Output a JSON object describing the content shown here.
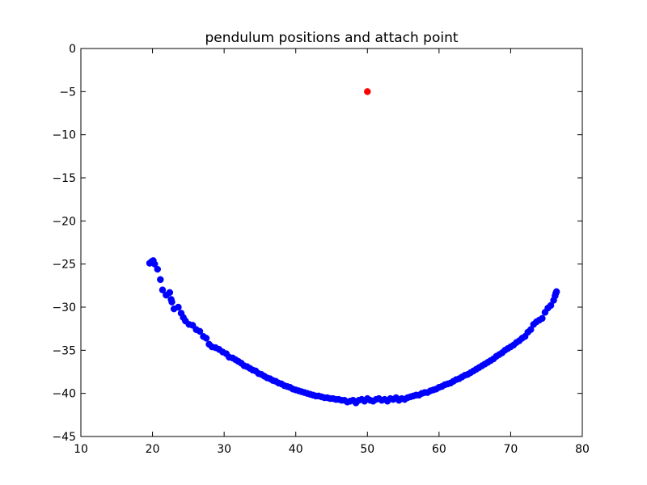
{
  "chart_data": {
    "type": "scatter",
    "title": "pendulum positions and attach point",
    "xlabel": "",
    "ylabel": "",
    "xlim": [
      10,
      80
    ],
    "ylim": [
      -45,
      0
    ],
    "xticks": [
      10,
      20,
      30,
      40,
      50,
      60,
      70,
      80
    ],
    "yticks": [
      0,
      -5,
      -10,
      -15,
      -20,
      -25,
      -30,
      -35,
      -40,
      -45
    ],
    "xtick_labels": [
      "10",
      "20",
      "30",
      "40",
      "50",
      "60",
      "70",
      "80"
    ],
    "ytick_labels": [
      "0",
      "−5",
      "−10",
      "−15",
      "−20",
      "−25",
      "−30",
      "−35",
      "−40",
      "−45"
    ],
    "grid": false,
    "series": [
      {
        "color": "#0000ff",
        "points": [
          [
            19.6,
            -24.9
          ],
          [
            19.9,
            -24.7
          ],
          [
            20.1,
            -24.6
          ],
          [
            20.3,
            -25.0
          ],
          [
            20.7,
            -25.6
          ],
          [
            21.1,
            -26.8
          ],
          [
            21.4,
            -28.0
          ],
          [
            21.9,
            -28.6
          ],
          [
            22.4,
            -28.3
          ],
          [
            22.6,
            -29.1
          ],
          [
            22.7,
            -29.4
          ],
          [
            23.0,
            -30.2
          ],
          [
            23.6,
            -30.0
          ],
          [
            24.0,
            -30.7
          ],
          [
            24.3,
            -31.2
          ],
          [
            24.6,
            -31.6
          ],
          [
            25.1,
            -32.0
          ],
          [
            25.6,
            -32.1
          ],
          [
            26.1,
            -32.6
          ],
          [
            26.6,
            -32.8
          ],
          [
            27.1,
            -33.4
          ],
          [
            27.5,
            -33.6
          ],
          [
            27.9,
            -34.3
          ],
          [
            28.3,
            -34.6
          ],
          [
            28.8,
            -34.7
          ],
          [
            29.3,
            -34.9
          ],
          [
            29.8,
            -35.2
          ],
          [
            30.3,
            -35.4
          ],
          [
            30.7,
            -35.8
          ],
          [
            31.2,
            -35.9
          ],
          [
            31.6,
            -36.1
          ],
          [
            32.0,
            -36.3
          ],
          [
            32.4,
            -36.5
          ],
          [
            32.8,
            -36.8
          ],
          [
            33.2,
            -36.9
          ],
          [
            33.6,
            -37.1
          ],
          [
            34.0,
            -37.3
          ],
          [
            34.4,
            -37.4
          ],
          [
            34.8,
            -37.7
          ],
          [
            35.2,
            -37.8
          ],
          [
            35.6,
            -38.0
          ],
          [
            36.0,
            -38.2
          ],
          [
            36.4,
            -38.3
          ],
          [
            36.8,
            -38.5
          ],
          [
            37.2,
            -38.6
          ],
          [
            37.6,
            -38.8
          ],
          [
            38.0,
            -38.9
          ],
          [
            38.4,
            -39.1
          ],
          [
            38.8,
            -39.2
          ],
          [
            39.2,
            -39.3
          ],
          [
            39.6,
            -39.5
          ],
          [
            40.0,
            -39.6
          ],
          [
            40.4,
            -39.7
          ],
          [
            40.8,
            -39.8
          ],
          [
            41.2,
            -39.9
          ],
          [
            41.6,
            -40.0
          ],
          [
            42.0,
            -40.1
          ],
          [
            42.4,
            -40.2
          ],
          [
            42.8,
            -40.3
          ],
          [
            43.2,
            -40.3
          ],
          [
            43.6,
            -40.4
          ],
          [
            44.0,
            -40.5
          ],
          [
            44.4,
            -40.5
          ],
          [
            44.8,
            -40.6
          ],
          [
            45.2,
            -40.6
          ],
          [
            45.6,
            -40.7
          ],
          [
            46.0,
            -40.7
          ],
          [
            46.4,
            -40.8
          ],
          [
            46.8,
            -40.8
          ],
          [
            47.2,
            -41.0
          ],
          [
            47.6,
            -40.9
          ],
          [
            48.0,
            -40.8
          ],
          [
            48.4,
            -41.1
          ],
          [
            48.8,
            -40.8
          ],
          [
            49.2,
            -40.7
          ],
          [
            49.6,
            -40.9
          ],
          [
            50.0,
            -40.6
          ],
          [
            50.4,
            -40.8
          ],
          [
            50.8,
            -40.9
          ],
          [
            51.2,
            -40.7
          ],
          [
            51.6,
            -40.6
          ],
          [
            52.0,
            -40.8
          ],
          [
            52.4,
            -40.7
          ],
          [
            52.8,
            -40.9
          ],
          [
            53.2,
            -40.6
          ],
          [
            53.6,
            -40.7
          ],
          [
            54.0,
            -40.5
          ],
          [
            54.4,
            -40.8
          ],
          [
            54.8,
            -40.6
          ],
          [
            55.2,
            -40.7
          ],
          [
            55.6,
            -40.5
          ],
          [
            56.0,
            -40.4
          ],
          [
            56.4,
            -40.3
          ],
          [
            56.8,
            -40.2
          ],
          [
            57.2,
            -40.2
          ],
          [
            57.6,
            -40.0
          ],
          [
            58.0,
            -39.9
          ],
          [
            58.4,
            -39.9
          ],
          [
            58.8,
            -39.7
          ],
          [
            59.2,
            -39.6
          ],
          [
            59.6,
            -39.5
          ],
          [
            60.0,
            -39.3
          ],
          [
            60.4,
            -39.2
          ],
          [
            60.8,
            -39.0
          ],
          [
            61.2,
            -38.9
          ],
          [
            61.6,
            -38.8
          ],
          [
            62.0,
            -38.6
          ],
          [
            62.4,
            -38.4
          ],
          [
            62.8,
            -38.3
          ],
          [
            63.2,
            -38.1
          ],
          [
            63.6,
            -37.9
          ],
          [
            64.0,
            -37.8
          ],
          [
            64.4,
            -37.6
          ],
          [
            64.8,
            -37.4
          ],
          [
            65.2,
            -37.2
          ],
          [
            65.6,
            -37.0
          ],
          [
            66.0,
            -36.8
          ],
          [
            66.4,
            -36.6
          ],
          [
            66.8,
            -36.4
          ],
          [
            67.2,
            -36.2
          ],
          [
            67.6,
            -36.0
          ],
          [
            68.0,
            -35.7
          ],
          [
            68.4,
            -35.5
          ],
          [
            68.8,
            -35.3
          ],
          [
            69.2,
            -35.0
          ],
          [
            69.6,
            -34.8
          ],
          [
            70.0,
            -34.6
          ],
          [
            70.4,
            -34.4
          ],
          [
            70.8,
            -34.1
          ],
          [
            71.2,
            -33.9
          ],
          [
            71.6,
            -33.6
          ],
          [
            72.0,
            -33.4
          ],
          [
            72.4,
            -32.9
          ],
          [
            72.8,
            -32.6
          ],
          [
            73.2,
            -32.0
          ],
          [
            73.6,
            -31.7
          ],
          [
            74.0,
            -31.5
          ],
          [
            74.4,
            -31.3
          ],
          [
            74.8,
            -30.6
          ],
          [
            75.2,
            -30.1
          ],
          [
            75.6,
            -29.8
          ],
          [
            76.0,
            -29.2
          ],
          [
            76.2,
            -28.7
          ],
          [
            76.3,
            -28.4
          ],
          [
            76.4,
            -28.2
          ]
        ]
      },
      {
        "color": "#ff0000",
        "points": [
          [
            50,
            -5
          ]
        ]
      }
    ]
  }
}
